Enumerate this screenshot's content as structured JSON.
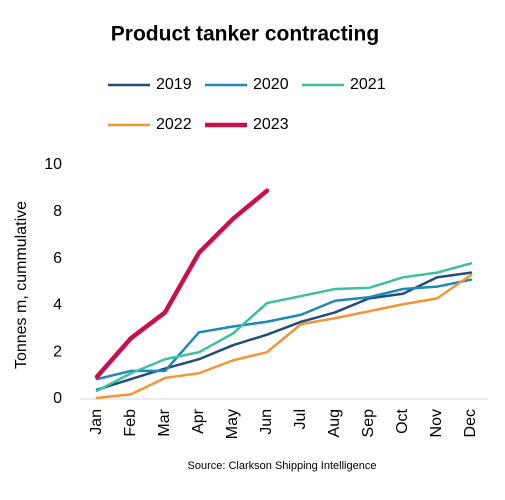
{
  "chart_data": {
    "type": "line",
    "title": "Product tanker contracting",
    "y_axis_label": "Tonnes m, cummulative",
    "source": "Source: Clarkson Shipping Intelligence",
    "categories": [
      "Jan",
      "Feb",
      "Mar",
      "Apr",
      "May",
      "Jun",
      "Jul",
      "Aug",
      "Sep",
      "Oct",
      "Nov",
      "Dec"
    ],
    "ylim": [
      0,
      10
    ],
    "yticks": [
      0,
      2,
      4,
      6,
      8,
      10
    ],
    "legend": "top",
    "series": [
      {
        "name": "2019",
        "color": "#1f4e79",
        "values": [
          0.4,
          0.85,
          1.3,
          1.7,
          2.3,
          2.75,
          3.3,
          3.7,
          4.3,
          4.5,
          5.2,
          5.4
        ]
      },
      {
        "name": "2020",
        "color": "#1a8ab8",
        "values": [
          0.85,
          1.2,
          1.2,
          2.85,
          3.1,
          3.3,
          3.6,
          4.2,
          4.35,
          4.7,
          4.8,
          5.1
        ]
      },
      {
        "name": "2021",
        "color": "#3cc0a0",
        "values": [
          0.35,
          1.1,
          1.7,
          2.0,
          2.8,
          4.1,
          4.4,
          4.7,
          4.75,
          5.2,
          5.4,
          5.8
        ]
      },
      {
        "name": "2022",
        "color": "#f39536",
        "values": [
          0.05,
          0.2,
          0.9,
          1.1,
          1.65,
          2.0,
          3.2,
          3.45,
          3.75,
          4.05,
          4.3,
          5.3
        ]
      },
      {
        "name": "2023",
        "color": "#c8104e",
        "values": [
          0.95,
          2.6,
          3.7,
          6.25,
          7.7,
          8.9,
          null,
          null,
          null,
          null,
          null,
          null
        ]
      }
    ]
  }
}
